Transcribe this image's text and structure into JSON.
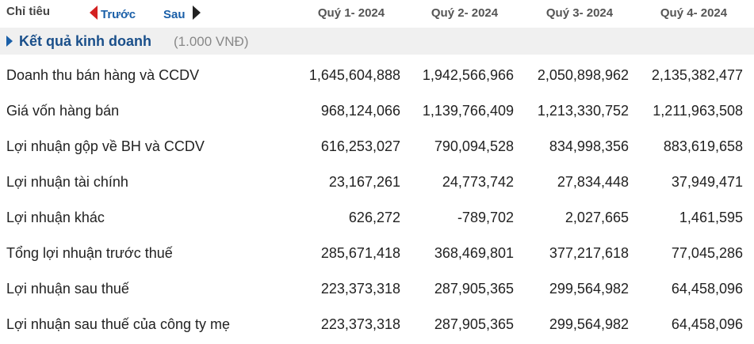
{
  "header": {
    "label": "Chỉ tiêu",
    "prev": "Trước",
    "next": "Sau",
    "columns": [
      "Quý 1- 2024",
      "Quý 2- 2024",
      "Quý 3- 2024",
      "Quý 4- 2024"
    ]
  },
  "section": {
    "title": "Kết quả kinh doanh",
    "unit": "(1.000 VNĐ)"
  },
  "table": {
    "rows": [
      [
        "Doanh thu bán hàng và CCDV",
        "1,645,604,888",
        "1,942,566,966",
        "2,050,898,962",
        "2,135,382,477"
      ],
      [
        "Giá vốn hàng bán",
        "968,124,066",
        "1,139,766,409",
        "1,213,330,752",
        "1,211,963,508"
      ],
      [
        "Lợi nhuận gộp về BH và CCDV",
        "616,253,027",
        "790,094,528",
        "834,998,356",
        "883,619,658"
      ],
      [
        "Lợi nhuận tài chính",
        "23,167,261",
        "24,773,742",
        "27,834,448",
        "37,949,471"
      ],
      [
        "Lợi nhuận khác",
        "626,272",
        "-789,702",
        "2,027,665",
        "1,461,595"
      ],
      [
        "Tổng lợi nhuận trước thuế",
        "285,671,418",
        "368,469,801",
        "377,217,618",
        "77,045,286"
      ],
      [
        "Lợi nhuận sau thuế",
        "223,373,318",
        "287,905,365",
        "299,564,982",
        "64,458,096"
      ],
      [
        "Lợi nhuận sau thuế của công ty mẹ",
        "223,373,318",
        "287,905,365",
        "299,564,982",
        "64,458,096"
      ]
    ]
  }
}
